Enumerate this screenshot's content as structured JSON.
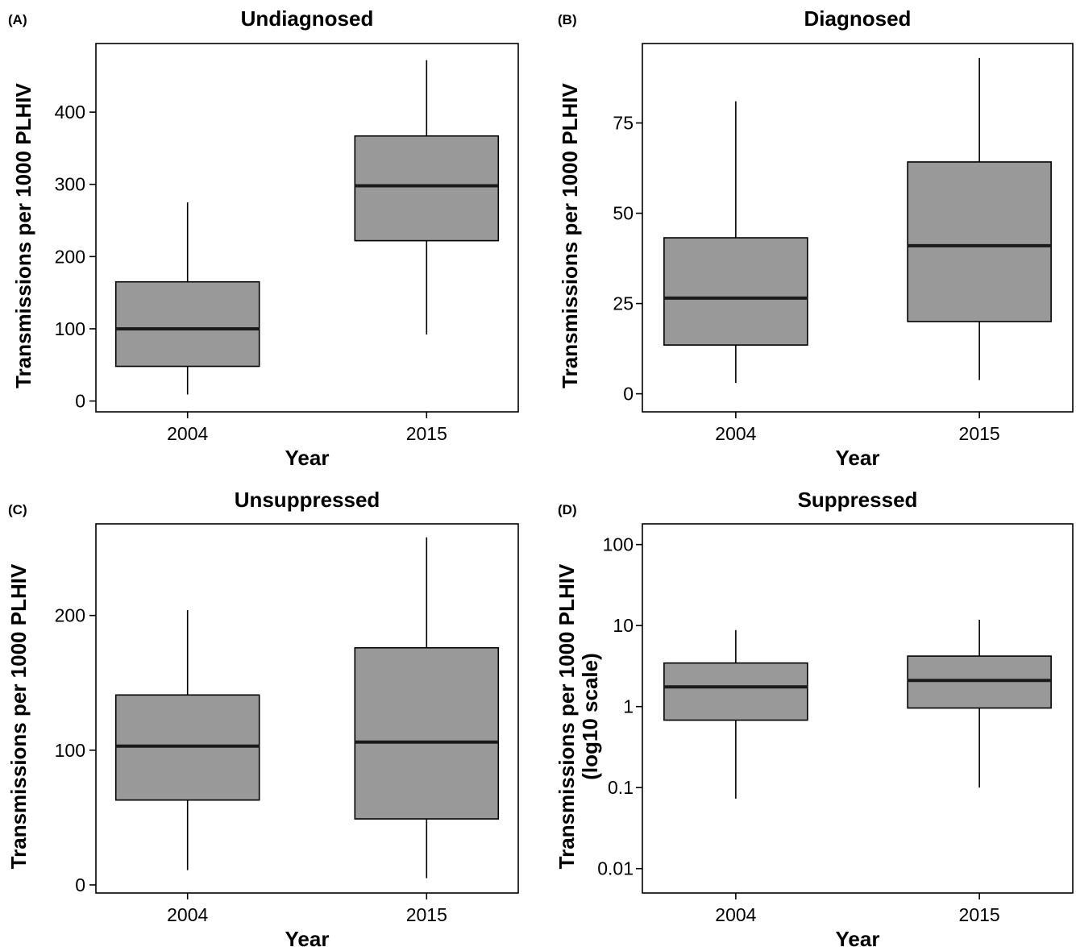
{
  "chart_data": [
    {
      "type": "box",
      "panel_tag": "(A)",
      "title": "Undiagnosed",
      "xlabel": "Year",
      "ylabel": [
        "Transmissions per 1000 PLHIV"
      ],
      "yscale": "linear",
      "ylim": [
        -15,
        495
      ],
      "yticks": [
        0,
        100,
        200,
        300,
        400
      ],
      "ytick_labels": [
        "0",
        "100",
        "200",
        "300",
        "400"
      ],
      "categories": [
        "2004",
        "2015"
      ],
      "boxes": [
        {
          "whisker_low": 9,
          "q1": 48,
          "median": 100,
          "q3": 165,
          "whisker_high": 275
        },
        {
          "whisker_low": 92,
          "q1": 222,
          "median": 298,
          "q3": 367,
          "whisker_high": 472
        }
      ]
    },
    {
      "type": "box",
      "panel_tag": "(B)",
      "title": "Diagnosed",
      "xlabel": "Year",
      "ylabel": [
        "Transmissions per 1000 PLHIV"
      ],
      "yscale": "linear",
      "ylim": [
        -5,
        97
      ],
      "yticks": [
        0,
        25,
        50,
        75
      ],
      "ytick_labels": [
        "0",
        "25",
        "50",
        "75"
      ],
      "categories": [
        "2004",
        "2015"
      ],
      "boxes": [
        {
          "whisker_low": 3,
          "q1": 13.5,
          "median": 26.5,
          "q3": 43.2,
          "whisker_high": 81
        },
        {
          "whisker_low": 3.8,
          "q1": 20,
          "median": 41,
          "q3": 64.2,
          "whisker_high": 93
        }
      ]
    },
    {
      "type": "box",
      "panel_tag": "(C)",
      "title": "Unsuppressed",
      "xlabel": "Year",
      "ylabel": [
        "Transmissions per 1000 PLHIV"
      ],
      "yscale": "linear",
      "ylim": [
        -6,
        268
      ],
      "yticks": [
        0,
        100,
        200
      ],
      "ytick_labels": [
        "0",
        "100",
        "200"
      ],
      "categories": [
        "2004",
        "2015"
      ],
      "boxes": [
        {
          "whisker_low": 11,
          "q1": 63,
          "median": 103,
          "q3": 141,
          "whisker_high": 204
        },
        {
          "whisker_low": 5,
          "q1": 49,
          "median": 106,
          "q3": 176,
          "whisker_high": 258
        }
      ]
    },
    {
      "type": "box",
      "panel_tag": "(D)",
      "title": "Suppressed",
      "xlabel": "Year",
      "ylabel": [
        "Transmissions per 1000 PLHIV",
        "(log10 scale)"
      ],
      "yscale": "log10",
      "ylim": [
        0.005,
        180
      ],
      "yticks": [
        0.01,
        0.1,
        1,
        10,
        100
      ],
      "ytick_labels": [
        "0.01",
        "0.1",
        "1",
        "10",
        "100"
      ],
      "categories": [
        "2004",
        "2015"
      ],
      "boxes": [
        {
          "whisker_low": 0.073,
          "q1": 0.68,
          "median": 1.75,
          "q3": 3.45,
          "whisker_high": 8.8
        },
        {
          "whisker_low": 0.1,
          "q1": 0.96,
          "median": 2.1,
          "q3": 4.2,
          "whisker_high": 11.8
        }
      ]
    }
  ]
}
